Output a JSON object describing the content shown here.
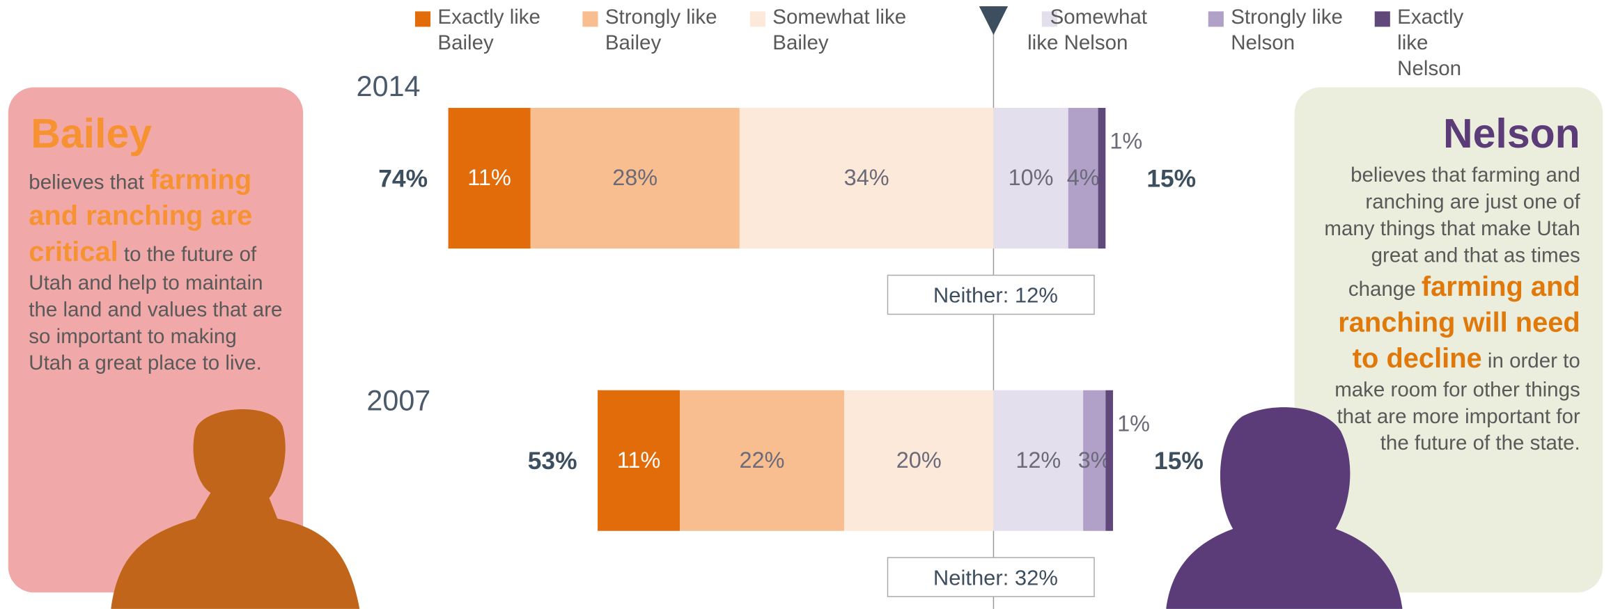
{
  "chart_data": {
    "type": "bar",
    "categories": [
      "2014",
      "2007"
    ],
    "series": [
      {
        "name": "Exactly like Bailey",
        "color": "#e36c0a",
        "side": "left",
        "values": [
          11,
          11
        ],
        "value_labels": [
          "11%",
          "11%"
        ]
      },
      {
        "name": "Strongly like Bailey",
        "color": "#f9be8f",
        "side": "left",
        "values": [
          28,
          22
        ],
        "value_labels": [
          "28%",
          "22%"
        ]
      },
      {
        "name": "Somewhat like Bailey",
        "color": "#fde9d9",
        "side": "left",
        "values": [
          34,
          20
        ],
        "value_labels": [
          "34%",
          "20%"
        ]
      },
      {
        "name": "Somewhat like Nelson",
        "color": "#e4dfec",
        "side": "right",
        "values": [
          10,
          12
        ],
        "value_labels": [
          "10%",
          "12%"
        ]
      },
      {
        "name": "Strongly like Nelson",
        "color": "#b1a0c7",
        "side": "right",
        "values": [
          4,
          3
        ],
        "value_labels": [
          "4%",
          "3%"
        ]
      },
      {
        "name": "Exactly like Nelson",
        "color": "#60497a",
        "side": "right",
        "values": [
          1,
          1
        ],
        "value_labels": [
          "1%",
          "1%"
        ]
      }
    ],
    "left_totals": {
      "values": [
        74,
        53
      ],
      "value_labels": [
        "74%",
        "53%"
      ]
    },
    "right_totals": {
      "values": [
        15,
        15
      ],
      "value_labels": [
        "15%",
        "15%"
      ]
    },
    "neither": {
      "values": [
        12,
        32
      ],
      "value_labels": [
        "Neither: 12%",
        "Neither: 32%"
      ]
    }
  },
  "panels": [
    {
      "title": "Bailey",
      "body": [
        {
          "text": "believes that ",
          "highlight": false
        },
        {
          "text": "farming and ranching are critical",
          "highlight": true
        },
        {
          "text": " to the future of Utah and help to maintain the land and values that are so important to making Utah a great place to live.",
          "highlight": false
        }
      ]
    },
    {
      "title": "Nelson",
      "body": [
        {
          "text": "believes that farming and ranching are just one of many things that make Utah great and that as times change ",
          "highlight": false
        },
        {
          "text": "farming and ranching will need to decline",
          "highlight": true
        },
        {
          "text": " in order to make room for other things that are more important for the future of the state.",
          "highlight": false
        }
      ]
    }
  ]
}
